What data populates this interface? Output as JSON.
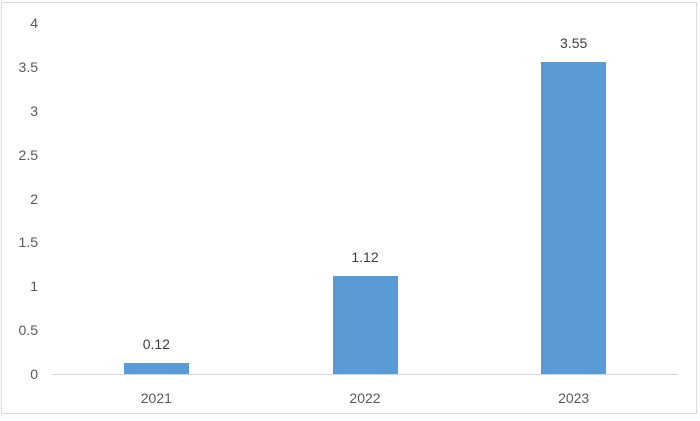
{
  "chart_data": {
    "type": "bar",
    "title": "",
    "xlabel": "",
    "ylabel": "",
    "categories": [
      "2021",
      "2022",
      "2023"
    ],
    "values": [
      0.12,
      1.12,
      3.55
    ],
    "data_labels": [
      "0.12",
      "1.12",
      "3.55"
    ],
    "yticks": [
      "0",
      "0.5",
      "1",
      "1.5",
      "2",
      "2.5",
      "3",
      "3.5",
      "4"
    ],
    "ytick_values": [
      0,
      0.5,
      1,
      1.5,
      2,
      2.5,
      3,
      3.5,
      4
    ],
    "ylim": [
      0,
      4
    ],
    "grid": false,
    "legend": "none",
    "bar_color": "#5B9BD5",
    "axis_line_color": "#D6D6D6",
    "tick_label_color": "#595959",
    "data_label_color": "#404040",
    "frame_border_color": "#DCDCDC"
  }
}
